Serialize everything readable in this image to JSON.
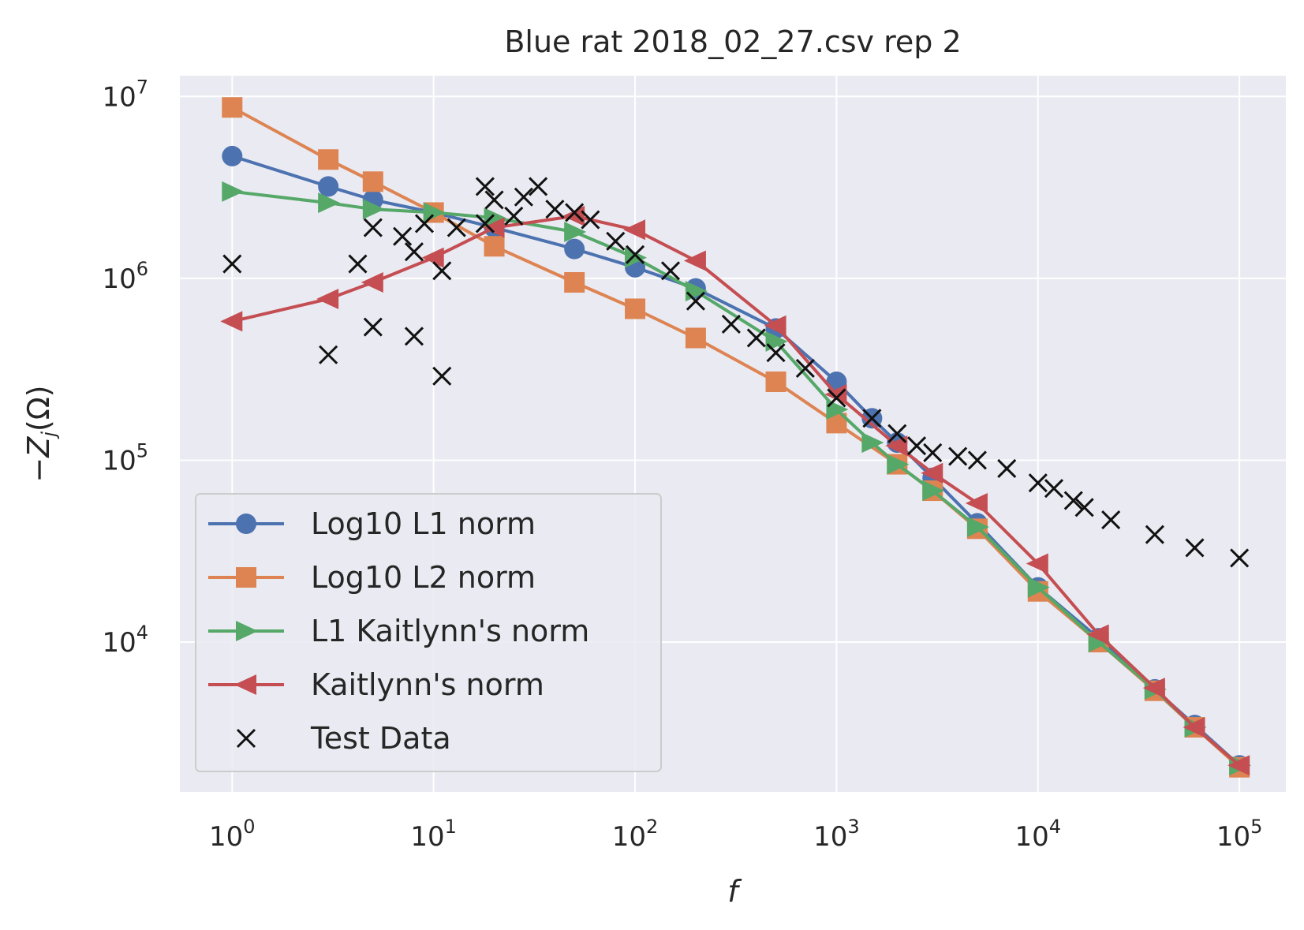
{
  "chart_data": {
    "type": "line",
    "title": "Blue rat 2018_02_27.csv rep 2",
    "xlabel": "f",
    "ylabel": "−Z",
    "ylabel_sub": "j",
    "ylabel_tail": "(Ω)",
    "xscale": "log",
    "yscale": "log",
    "xlim": [
      0.55,
      170000
    ],
    "ylim": [
      1500,
      13000000
    ],
    "grid": true,
    "legend_position": "lower-left",
    "x_ticks": [
      {
        "value": 1,
        "base": "10",
        "exp": "0"
      },
      {
        "value": 10,
        "base": "10",
        "exp": "1"
      },
      {
        "value": 100,
        "base": "10",
        "exp": "2"
      },
      {
        "value": 1000,
        "base": "10",
        "exp": "3"
      },
      {
        "value": 10000,
        "base": "10",
        "exp": "4"
      },
      {
        "value": 100000,
        "base": "10",
        "exp": "5"
      }
    ],
    "y_ticks": [
      {
        "value": 10000,
        "base": "10",
        "exp": "4"
      },
      {
        "value": 100000,
        "base": "10",
        "exp": "5"
      },
      {
        "value": 1000000,
        "base": "10",
        "exp": "6"
      },
      {
        "value": 10000000,
        "base": "10",
        "exp": "7"
      }
    ],
    "series": [
      {
        "name": "Log10 L1 norm",
        "color": "#4c72b0",
        "marker": "circle",
        "points": [
          [
            1,
            4700000
          ],
          [
            3,
            3200000
          ],
          [
            5,
            2700000
          ],
          [
            10,
            2300000
          ],
          [
            20,
            1900000
          ],
          [
            50,
            1450000
          ],
          [
            100,
            1150000
          ],
          [
            200,
            880000
          ],
          [
            500,
            530000
          ],
          [
            1000,
            270000
          ],
          [
            1500,
            170000
          ],
          [
            2000,
            125000
          ],
          [
            3000,
            80000
          ],
          [
            5000,
            45000
          ],
          [
            10000,
            20000
          ],
          [
            20000,
            10500
          ],
          [
            38000,
            5500
          ],
          [
            60000,
            3500
          ],
          [
            100000,
            2100
          ]
        ]
      },
      {
        "name": "Log10 L2 norm",
        "color": "#dd8452",
        "marker": "square",
        "points": [
          [
            1,
            8700000
          ],
          [
            3,
            4500000
          ],
          [
            5,
            3400000
          ],
          [
            10,
            2300000
          ],
          [
            20,
            1500000
          ],
          [
            50,
            950000
          ],
          [
            100,
            680000
          ],
          [
            200,
            470000
          ],
          [
            500,
            270000
          ],
          [
            1000,
            160000
          ],
          [
            2000,
            95000
          ],
          [
            3000,
            68000
          ],
          [
            5000,
            42000
          ],
          [
            10000,
            19000
          ],
          [
            20000,
            10000
          ],
          [
            38000,
            5400
          ],
          [
            60000,
            3400
          ],
          [
            100000,
            2050
          ]
        ]
      },
      {
        "name": "L1 Kaitlynn's norm",
        "color": "#55a868",
        "marker": "triangle-right",
        "points": [
          [
            1,
            3000000
          ],
          [
            3,
            2600000
          ],
          [
            5,
            2400000
          ],
          [
            10,
            2300000
          ],
          [
            20,
            2150000
          ],
          [
            50,
            1800000
          ],
          [
            100,
            1300000
          ],
          [
            200,
            850000
          ],
          [
            500,
            450000
          ],
          [
            1000,
            190000
          ],
          [
            1500,
            125000
          ],
          [
            2000,
            95000
          ],
          [
            3000,
            68000
          ],
          [
            5000,
            43000
          ],
          [
            10000,
            20000
          ],
          [
            20000,
            10000
          ],
          [
            38000,
            5500
          ],
          [
            60000,
            3400
          ],
          [
            100000,
            2100
          ]
        ]
      },
      {
        "name": "Kaitlynn's norm",
        "color": "#c44e52",
        "marker": "triangle-left",
        "points": [
          [
            1,
            580000
          ],
          [
            3,
            770000
          ],
          [
            5,
            950000
          ],
          [
            10,
            1300000
          ],
          [
            20,
            1900000
          ],
          [
            50,
            2200000
          ],
          [
            100,
            1850000
          ],
          [
            200,
            1250000
          ],
          [
            500,
            550000
          ],
          [
            1000,
            230000
          ],
          [
            2000,
            120000
          ],
          [
            3000,
            85000
          ],
          [
            5000,
            58000
          ],
          [
            10000,
            27000
          ],
          [
            20000,
            11000
          ],
          [
            38000,
            5600
          ],
          [
            60000,
            3400
          ],
          [
            100000,
            2100
          ]
        ]
      },
      {
        "name": "Test Data",
        "color": "#111111",
        "marker": "x",
        "line": false,
        "points": [
          [
            1,
            1200000
          ],
          [
            3,
            380000
          ],
          [
            4.2,
            1200000
          ],
          [
            5,
            1900000
          ],
          [
            5,
            540000
          ],
          [
            7,
            1700000
          ],
          [
            8,
            1400000
          ],
          [
            8,
            480000
          ],
          [
            9,
            2000000
          ],
          [
            11,
            1100000
          ],
          [
            11,
            290000
          ],
          [
            13,
            1900000
          ],
          [
            18,
            3200000
          ],
          [
            18,
            2000000
          ],
          [
            20,
            2700000
          ],
          [
            25,
            2200000
          ],
          [
            28,
            2800000
          ],
          [
            33,
            3200000
          ],
          [
            40,
            2400000
          ],
          [
            50,
            2300000
          ],
          [
            60,
            2100000
          ],
          [
            80,
            1600000
          ],
          [
            100,
            1350000
          ],
          [
            150,
            1100000
          ],
          [
            200,
            750000
          ],
          [
            300,
            560000
          ],
          [
            400,
            470000
          ],
          [
            500,
            390000
          ],
          [
            700,
            320000
          ],
          [
            1000,
            220000
          ],
          [
            1500,
            170000
          ],
          [
            2000,
            140000
          ],
          [
            2500,
            120000
          ],
          [
            3000,
            110000
          ],
          [
            4000,
            105000
          ],
          [
            5000,
            100000
          ],
          [
            7000,
            90000
          ],
          [
            10000,
            75000
          ],
          [
            12000,
            70000
          ],
          [
            15000,
            60000
          ],
          [
            17000,
            55000
          ],
          [
            23000,
            47000
          ],
          [
            38000,
            39000
          ],
          [
            60000,
            33000
          ],
          [
            100000,
            29000
          ]
        ]
      }
    ]
  }
}
